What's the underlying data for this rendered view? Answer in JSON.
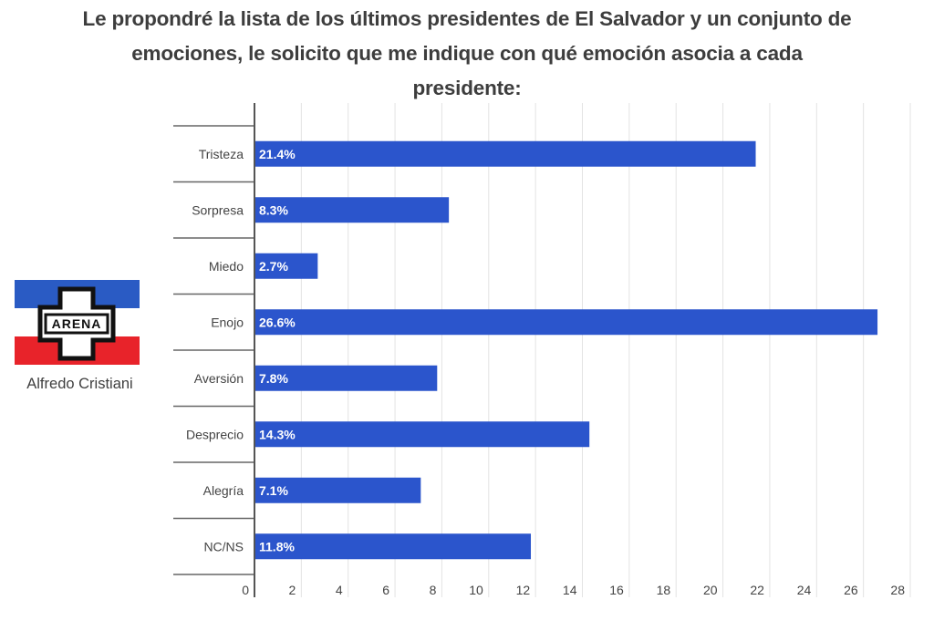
{
  "title_lines": [
    "Le propondré la lista de los últimos presidentes de El Salvador y un conjunto de",
    "emociones, le solicito que me indique con qué emoción asocia a cada",
    "presidente:"
  ],
  "candidate": {
    "name": "Alfredo Cristiani",
    "party_logo_text": "ARENA",
    "logo_colors": {
      "top": "#2a5bc4",
      "middle": "#ffffff",
      "bottom": "#e8232a",
      "cross_outline": "#111111"
    }
  },
  "colors": {
    "bar": "#2b55cc",
    "grid": "#e3e3e3",
    "axis": "#555555",
    "text": "#444444"
  },
  "chart_data": {
    "type": "bar",
    "orientation": "horizontal",
    "title": "Le propondré la lista de los últimos presidentes de El Salvador y un conjunto de emociones, le solicito que me indique con qué emoción asocia a cada presidente:",
    "categories": [
      "Tristeza",
      "Sorpresa",
      "Miedo",
      "Enojo",
      "Aversión",
      "Desprecio",
      "Alegría",
      "NC/NS"
    ],
    "values": [
      21.4,
      8.3,
      2.7,
      26.6,
      7.8,
      14.3,
      7.1,
      11.8
    ],
    "data_labels": [
      "21.4%",
      "8.3%",
      "2.7%",
      "26.6%",
      "7.8%",
      "14.3%",
      "7.1%",
      "11.8%"
    ],
    "xlabel": "",
    "ylabel": "",
    "xlim": [
      0,
      28
    ],
    "x_ticks": [
      0,
      2,
      4,
      6,
      8,
      10,
      12,
      14,
      16,
      18,
      20,
      22,
      24,
      26,
      28
    ],
    "grid": true,
    "legend": "none"
  }
}
